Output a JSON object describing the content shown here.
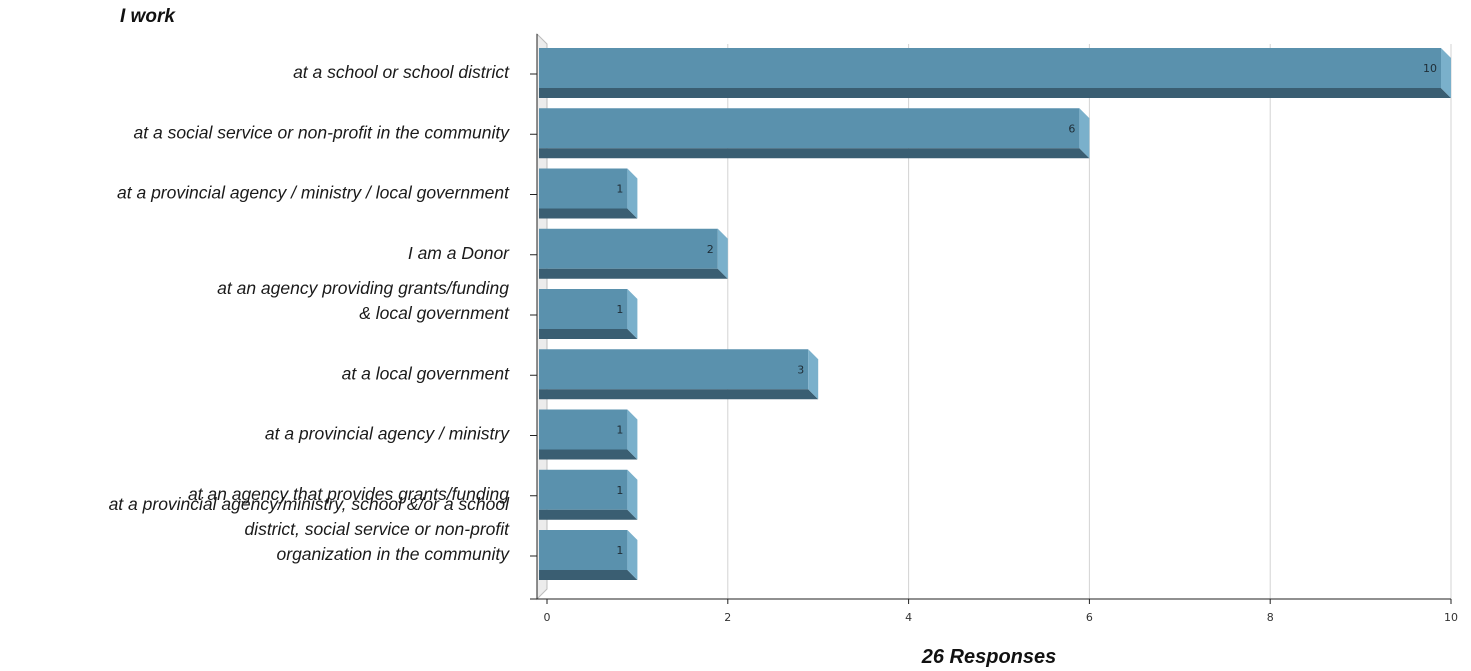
{
  "chart_data": {
    "type": "bar",
    "orientation": "horizontal",
    "title": "I work",
    "xlabel": "26 Responses",
    "ylabel": "",
    "categories": [
      [
        "at a school or school district"
      ],
      [
        "at a social service  or non-profit in the community"
      ],
      [
        "at a provincial agency / ministry / local government"
      ],
      [
        "I am a Donor"
      ],
      [
        "at an agency providing grants/funding",
        "& local government"
      ],
      [
        "at a local government"
      ],
      [
        "at a provincial agency / ministry"
      ],
      [
        "at an agency that provides grants/funding"
      ],
      [
        "at a provincial agency/ministry, school &/or a school",
        "district, social service or non-profit",
        "organization in the community"
      ]
    ],
    "values": [
      10,
      6,
      1,
      2,
      1,
      3,
      1,
      1,
      1
    ],
    "xlim": [
      0,
      10
    ],
    "xticks": [
      0,
      2,
      4,
      6,
      8,
      10
    ],
    "grid": true,
    "colors": {
      "bar_front": "#5a91ad",
      "bar_bottom": "#3a5e72",
      "bar_side": "#7ab0cb"
    }
  }
}
